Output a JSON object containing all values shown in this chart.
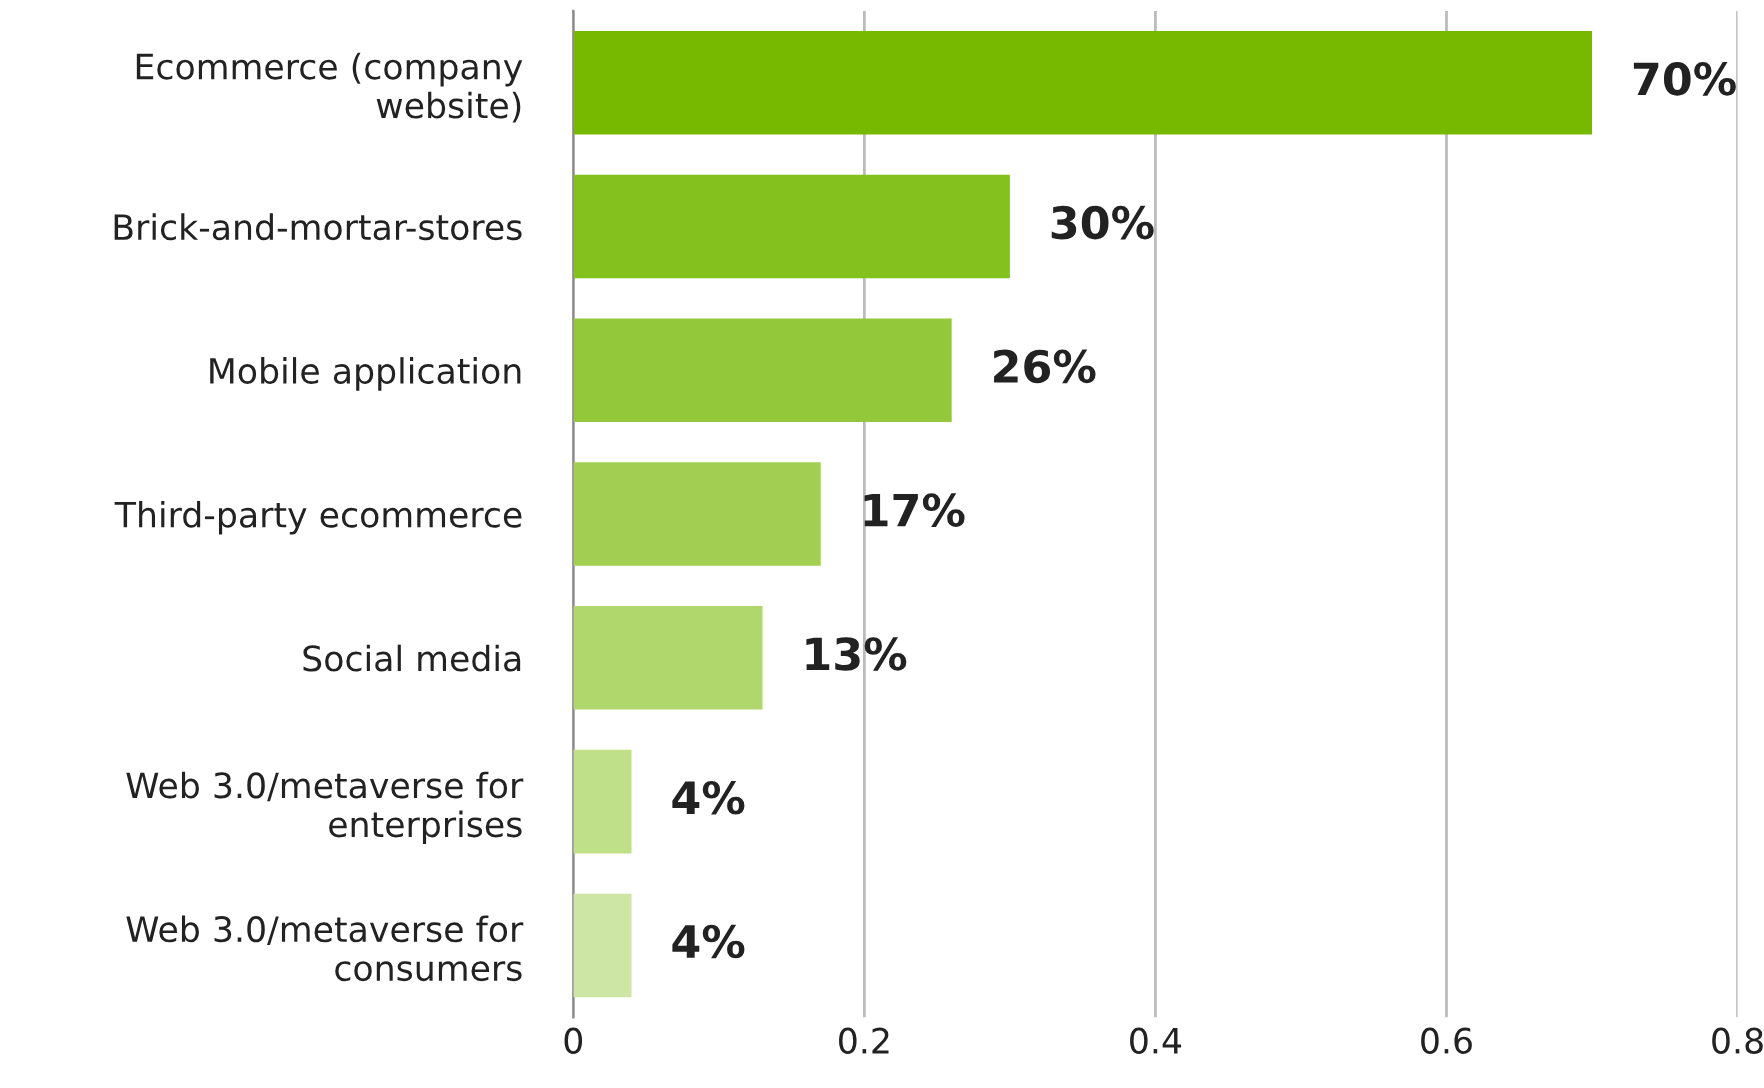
{
  "chart_data": {
    "type": "bar",
    "orientation": "horizontal",
    "categories": [
      "Ecommerce (company\nwebsite)",
      "Brick-and-mortar-stores",
      "Mobile application",
      "Third-party ecommerce",
      "Social media",
      "Web 3.0/metaverse for\nenterprises",
      "Web 3.0/metaverse for\nconsumers"
    ],
    "values": [
      0.7,
      0.3,
      0.26,
      0.17,
      0.13,
      0.04,
      0.04
    ],
    "colors": [
      "#76b900",
      "#84c11e",
      "#93c83a",
      "#a2cf52",
      "#b0d76b",
      "#bfdf88",
      "#cde5a5"
    ],
    "value_labels": [
      "70%",
      "30%",
      "26%",
      "17%",
      "13%",
      "4%",
      "4%"
    ],
    "xlim": [
      0,
      0.8
    ],
    "xticks": [
      0,
      0.2,
      0.4,
      0.6,
      0.8
    ],
    "grid": "x",
    "legend": false
  }
}
